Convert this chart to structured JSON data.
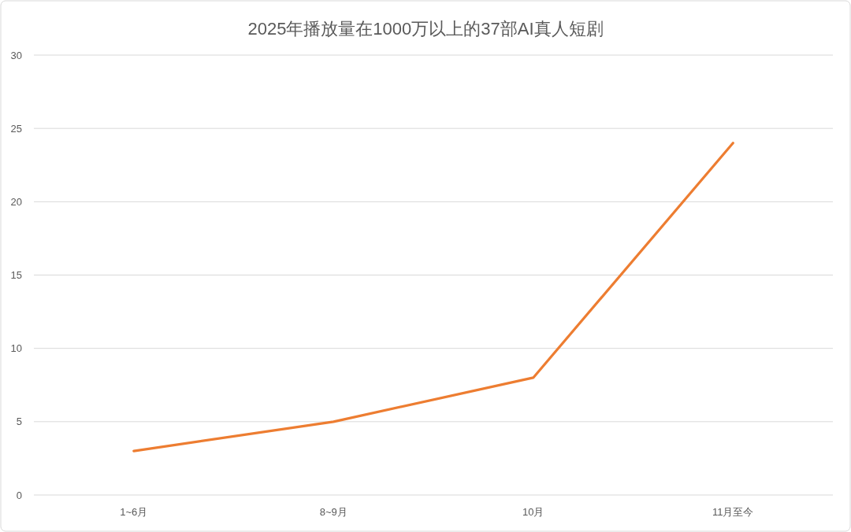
{
  "chart_data": {
    "type": "line",
    "title": "2025年播放量在1000万以上的37部AI真人短剧",
    "categories": [
      "1~6月",
      "8~9月",
      "10月",
      "11月至今"
    ],
    "series": [
      {
        "color": "#ed7d31",
        "values": [
          3,
          5,
          8,
          24
        ]
      }
    ],
    "ylim": [
      0,
      30
    ],
    "yticks": [
      0,
      5,
      10,
      15,
      20,
      25,
      30
    ],
    "grid": "y",
    "marker": "none",
    "line_style": "solid"
  }
}
